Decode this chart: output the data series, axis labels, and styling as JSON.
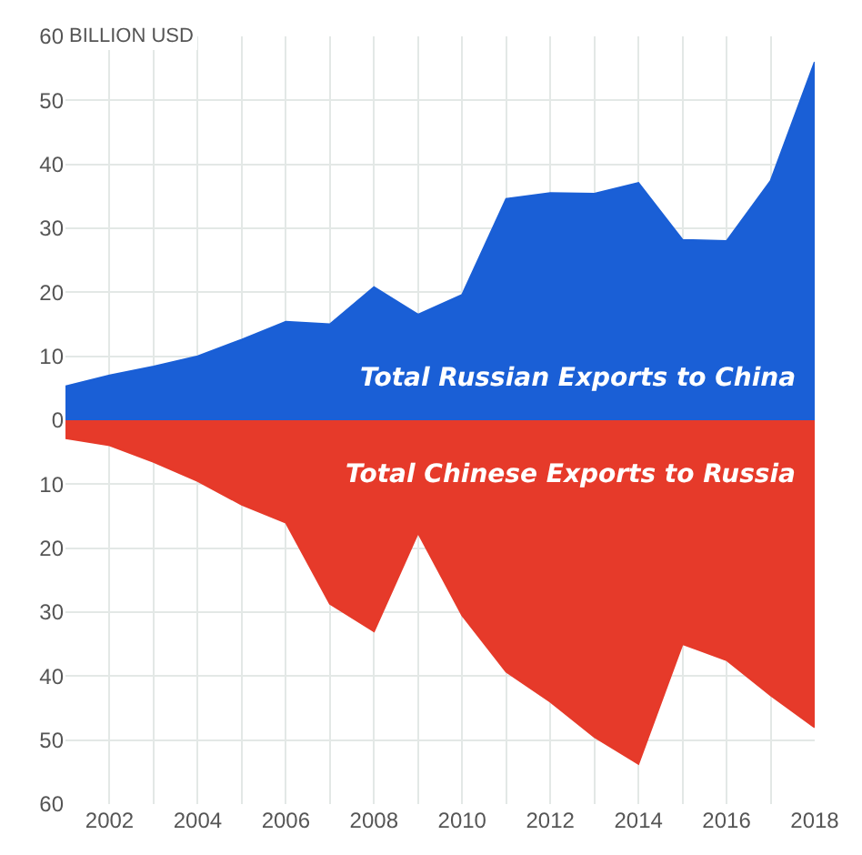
{
  "chart_data": {
    "type": "area",
    "ylabel": "BILLION USD",
    "x": [
      2001,
      2002,
      2003,
      2004,
      2005,
      2006,
      2007,
      2008,
      2009,
      2010,
      2011,
      2012,
      2013,
      2014,
      2015,
      2016,
      2017,
      2018
    ],
    "series": [
      {
        "name": "Total Russian Exports to China",
        "color": "#1a5fd6",
        "values": [
          5.3,
          7.0,
          8.4,
          10,
          12.6,
          15.4,
          15,
          20.8,
          16.5,
          19.6,
          34.6,
          35.5,
          35.4,
          37.1,
          28.2,
          28,
          37.4,
          56
        ]
      },
      {
        "name": "Total Chinese Exports to Russia",
        "color": "#e63a2a",
        "values": [
          -2.8,
          -3.9,
          -6.5,
          -9.5,
          -13.2,
          -16,
          -28.7,
          -33,
          -17.6,
          -30.5,
          -39.3,
          -44,
          -49.5,
          -53.7,
          -35,
          -37.5,
          -43,
          -48
        ]
      }
    ],
    "xlim": [
      2001,
      2018
    ],
    "xticks": [
      2002,
      2004,
      2006,
      2008,
      2010,
      2012,
      2014,
      2016,
      2018
    ],
    "ylim": [
      -60,
      60
    ],
    "yticks": [
      {
        "value": -60,
        "label": "60"
      },
      {
        "value": -50,
        "label": "50"
      },
      {
        "value": -40,
        "label": "40"
      },
      {
        "value": -30,
        "label": "30"
      },
      {
        "value": -20,
        "label": "20"
      },
      {
        "value": -10,
        "label": "10"
      },
      0,
      10,
      20,
      30,
      40,
      50,
      60
    ],
    "grid": true,
    "legend": false,
    "marker": "none"
  }
}
